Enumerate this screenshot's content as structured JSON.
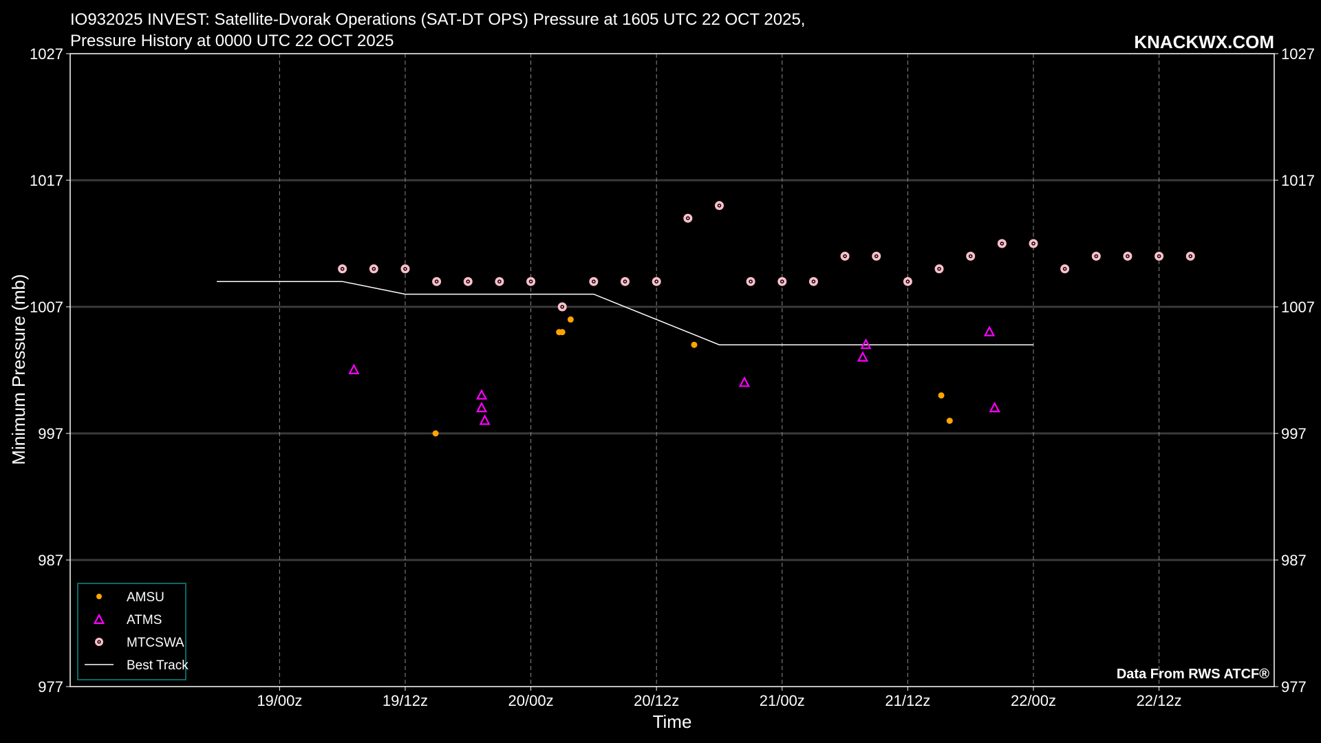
{
  "header": {
    "title_line1": "IO932025 INVEST: Satellite-Dvorak Operations (SAT-DT OPS) Pressure at 1605 UTC 22 OCT 2025,",
    "title_line2": "Pressure History at 0000 UTC 22 OCT 2025",
    "brand": "KNACKWX.COM",
    "credit": "Data From RWS ATCF®"
  },
  "colors": {
    "background": "#000000",
    "amsu": "#ffa500",
    "atms": "#ff00ff",
    "mtcswa": "#ffc0cb",
    "best_track": "#ffffff",
    "legend_border": "#0e8a8a"
  },
  "chart_data": {
    "type": "scatter",
    "xlabel": "Time",
    "ylabel": "Minimum Pressure (mb)",
    "xlim_hours": [
      -20,
      95
    ],
    "ylim": [
      977,
      1027
    ],
    "x_ticks": [
      {
        "hour": 0,
        "label": "19/00z"
      },
      {
        "hour": 12,
        "label": "19/12z"
      },
      {
        "hour": 24,
        "label": "20/00z"
      },
      {
        "hour": 36,
        "label": "20/12z"
      },
      {
        "hour": 48,
        "label": "21/00z"
      },
      {
        "hour": 60,
        "label": "21/12z"
      },
      {
        "hour": 72,
        "label": "22/00z"
      },
      {
        "hour": 84,
        "label": "22/12z"
      }
    ],
    "y_ticks": [
      {
        "value": 977,
        "label": "977"
      },
      {
        "value": 987,
        "label": "987"
      },
      {
        "value": 997,
        "label": "997"
      },
      {
        "value": 1007,
        "label": "1007"
      },
      {
        "value": 1017,
        "label": "1017"
      },
      {
        "value": 1027,
        "label": "1027"
      }
    ],
    "grid": true,
    "legend_position": "lower-left",
    "series": [
      {
        "name": "AMSU",
        "marker": "dot",
        "points": [
          [
            14.9,
            997
          ],
          [
            26.7,
            1005
          ],
          [
            27.0,
            1005
          ],
          [
            27.8,
            1006
          ],
          [
            39.6,
            1004
          ],
          [
            63.2,
            1000
          ],
          [
            64.0,
            998
          ]
        ]
      },
      {
        "name": "ATMS",
        "marker": "triangle",
        "points": [
          [
            7.1,
            1002
          ],
          [
            19.3,
            1000
          ],
          [
            19.3,
            999
          ],
          [
            19.6,
            998
          ],
          [
            44.4,
            1001
          ],
          [
            55.7,
            1003
          ],
          [
            56.0,
            1004
          ],
          [
            67.8,
            1005
          ],
          [
            68.3,
            999
          ]
        ]
      },
      {
        "name": "MTCSWA",
        "marker": "ring",
        "points": [
          [
            6,
            1010
          ],
          [
            9,
            1010
          ],
          [
            12,
            1010
          ],
          [
            15,
            1009
          ],
          [
            18,
            1009
          ],
          [
            21,
            1009
          ],
          [
            24,
            1009
          ],
          [
            27,
            1007
          ],
          [
            30,
            1009
          ],
          [
            33,
            1009
          ],
          [
            36,
            1009
          ],
          [
            39,
            1014
          ],
          [
            42,
            1015
          ],
          [
            45,
            1009
          ],
          [
            48,
            1009
          ],
          [
            51,
            1009
          ],
          [
            54,
            1011
          ],
          [
            57,
            1011
          ],
          [
            60,
            1009
          ],
          [
            63,
            1010
          ],
          [
            66,
            1011
          ],
          [
            69,
            1012
          ],
          [
            72,
            1012
          ],
          [
            75,
            1010
          ],
          [
            78,
            1011
          ],
          [
            81,
            1011
          ],
          [
            84,
            1011
          ],
          [
            87,
            1011
          ]
        ]
      },
      {
        "name": "Best Track",
        "marker": "line",
        "points": [
          [
            -6,
            1009
          ],
          [
            6,
            1009
          ],
          [
            12,
            1008
          ],
          [
            30,
            1008
          ],
          [
            42,
            1004
          ],
          [
            72,
            1004
          ]
        ]
      }
    ]
  }
}
